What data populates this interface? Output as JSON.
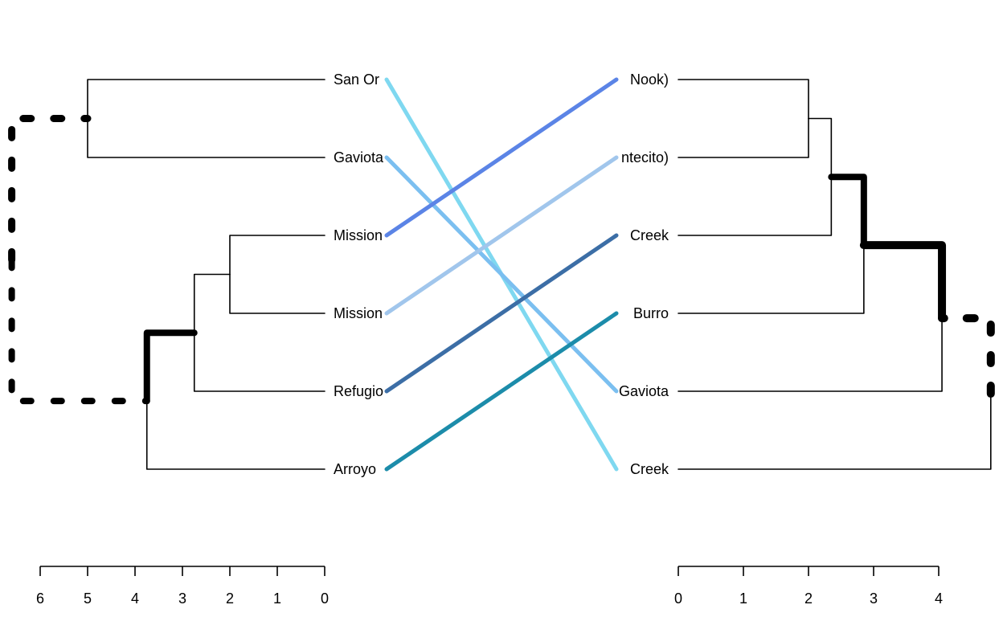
{
  "chart_data": {
    "type": "tanglegram",
    "left_tree": {
      "leaf_labels": [
        "San Or",
        "Gaviota",
        "Mission",
        "Mission",
        "Refugio",
        "Arroyo"
      ],
      "axis_ticks": [
        "6",
        "5",
        "4",
        "3",
        "2",
        "1",
        "0"
      ],
      "axis_range": [
        6,
        0
      ],
      "merges": [
        {
          "height": 5.0,
          "children": [
            0,
            1
          ]
        },
        {
          "height": 2.0,
          "children": [
            2,
            3
          ]
        },
        {
          "height": 2.75,
          "children": [
            4,
            "m2"
          ]
        },
        {
          "height": 3.75,
          "children": [
            5,
            "m3"
          ]
        },
        {
          "height": 6.6,
          "children": [
            "m1",
            "m4"
          ]
        }
      ]
    },
    "right_tree": {
      "leaf_labels": [
        "Nook)",
        "ntecito)",
        "Creek",
        "Burro",
        "Gaviota",
        "Creek"
      ],
      "axis_ticks": [
        "0",
        "1",
        "2",
        "3",
        "4"
      ],
      "axis_range": [
        0,
        4
      ],
      "merges": [
        {
          "height": 2.0,
          "children": [
            0,
            1
          ]
        },
        {
          "height": 2.35,
          "children": [
            2,
            "m1"
          ]
        },
        {
          "height": 2.85,
          "children": [
            3,
            "m2"
          ]
        },
        {
          "height": 4.05,
          "children": [
            4,
            "m3"
          ]
        },
        {
          "height": 4.8,
          "children": [
            5,
            "m4"
          ]
        }
      ]
    },
    "connections": [
      {
        "from_left": 0,
        "to_right": 5,
        "color": "#7FD8F0"
      },
      {
        "from_left": 1,
        "to_right": 4,
        "color": "#7BBFF0"
      },
      {
        "from_left": 2,
        "to_right": 0,
        "color": "#5B84E6"
      },
      {
        "from_left": 3,
        "to_right": 1,
        "color": "#A1C6EC"
      },
      {
        "from_left": 4,
        "to_right": 2,
        "color": "#3C6EA6"
      },
      {
        "from_left": 5,
        "to_right": 3,
        "color": "#1C8CAA"
      }
    ],
    "highlight_color": "#000000"
  }
}
